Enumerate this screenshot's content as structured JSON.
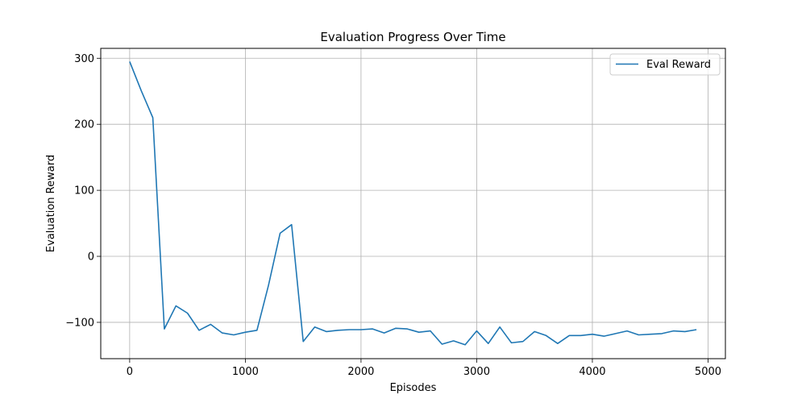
{
  "chart_data": {
    "type": "line",
    "title": "Evaluation Progress Over Time",
    "xlabel": "Episodes",
    "ylabel": "Evaluation Reward",
    "xlim": [
      -250,
      5150
    ],
    "ylim": [
      -155,
      315
    ],
    "x_ticks": [
      0,
      1000,
      2000,
      3000,
      4000,
      5000
    ],
    "y_ticks": [
      -100,
      0,
      100,
      200,
      300
    ],
    "grid": true,
    "legend_position": "top-right",
    "series": [
      {
        "name": "Eval Reward",
        "color": "#1f77b4",
        "x": [
          0,
          100,
          200,
          300,
          400,
          500,
          600,
          700,
          800,
          900,
          1000,
          1100,
          1200,
          1300,
          1400,
          1500,
          1600,
          1700,
          1800,
          1900,
          2000,
          2100,
          2200,
          2300,
          2400,
          2500,
          2600,
          2700,
          2800,
          2900,
          3000,
          3100,
          3200,
          3300,
          3400,
          3500,
          3600,
          3700,
          3800,
          3900,
          4000,
          4100,
          4200,
          4300,
          4400,
          4500,
          4600,
          4700,
          4800,
          4900
        ],
        "y": [
          295,
          251,
          210,
          -110,
          -75,
          -86,
          -112,
          -103,
          -116,
          -119,
          -115,
          -112,
          -44,
          35,
          48,
          -129,
          -107,
          -114,
          -112,
          -111,
          -111,
          -110,
          -116,
          -109,
          -110,
          -115,
          -113,
          -133,
          -128,
          -134,
          -113,
          -132,
          -107,
          -131,
          -129,
          -114,
          -120,
          -132,
          -120,
          -120,
          -118,
          -121,
          -117,
          -113,
          -119,
          -118,
          -117,
          -113,
          -114,
          -111
        ]
      }
    ]
  }
}
